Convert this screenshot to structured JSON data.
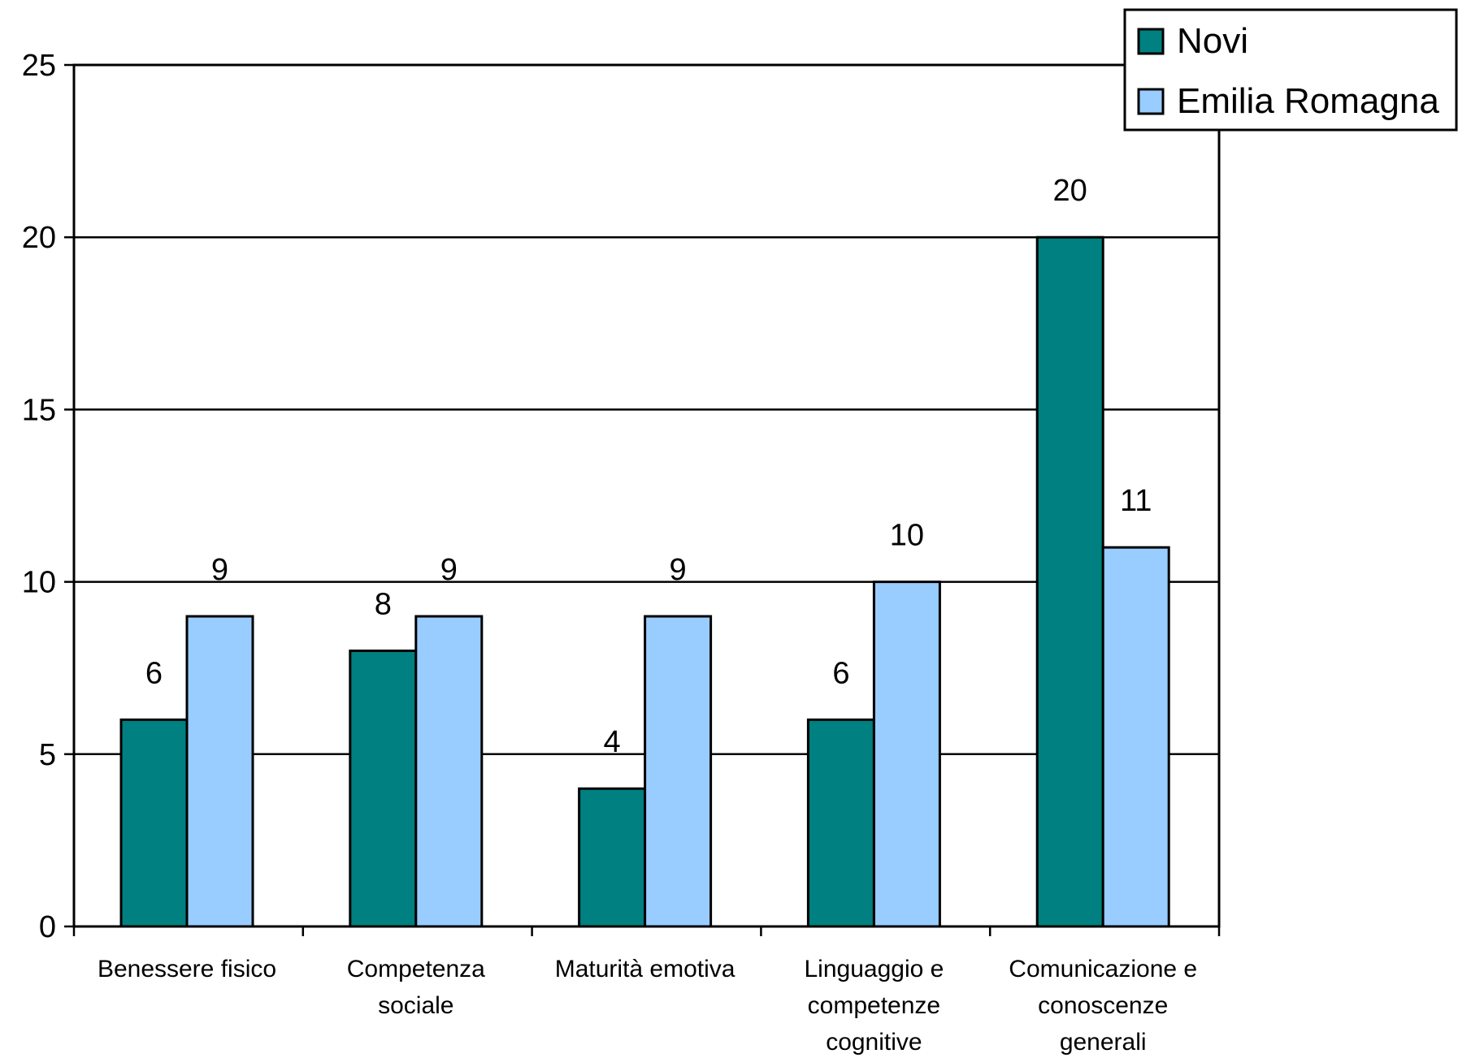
{
  "chart_data": {
    "type": "bar",
    "title": "",
    "xlabel": "",
    "ylabel": "",
    "ylim": [
      0,
      25
    ],
    "yticks": [
      0,
      5,
      10,
      15,
      20,
      25
    ],
    "grid": "horizontal",
    "legend_position": "top-right",
    "categories": [
      [
        "Benessere fisico"
      ],
      [
        "Competenza",
        "sociale"
      ],
      [
        "Maturità emotiva"
      ],
      [
        "Linguaggio e",
        "competenze",
        "cognitive"
      ],
      [
        "Comunicazione e",
        "conoscenze",
        "generali"
      ]
    ],
    "series": [
      {
        "name": "Novi",
        "color": "#008080",
        "values": [
          6,
          8,
          4,
          6,
          20
        ]
      },
      {
        "name": "Emilia Romagna",
        "color": "#99CCFF",
        "values": [
          9,
          9,
          9,
          10,
          11
        ]
      }
    ]
  }
}
